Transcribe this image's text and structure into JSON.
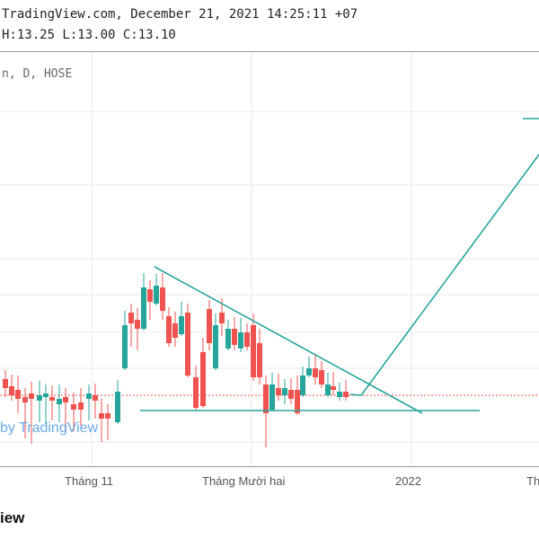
{
  "header": {
    "line1": "TradingView.com, December 21, 2021 14:25:11 +07",
    "line2": "H:13.25 L:13.00 C:13.10"
  },
  "symbol_line": "n, D, HOSE",
  "watermark": "by TradingView",
  "footer": {
    "logo_text": "iew"
  },
  "colors": {
    "up": "#26a69a",
    "down": "#ef5350",
    "trendline": "#26a69a",
    "grid": "#e8e8e8",
    "price_line": "#ef5350"
  },
  "x_axis": {
    "labels": [
      "Tháng 11",
      "Tháng Mười hai",
      "2022",
      "Th"
    ]
  },
  "chart_data": {
    "type": "candlestick",
    "x_axis_labels": [
      "Tháng 11",
      "Tháng Mười hai",
      "2022",
      "Th"
    ],
    "y_range_approx": [
      12.5,
      16.0
    ],
    "last_close": 13.1,
    "last_high": 13.25,
    "last_low": 13.0
  }
}
